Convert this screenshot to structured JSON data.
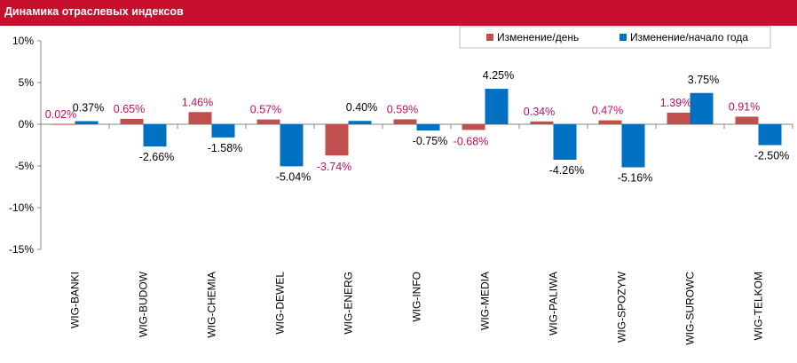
{
  "header": {
    "title": "Динамика отраслевых индексов"
  },
  "colors": {
    "header_bg": "#c8102e",
    "daily": "#c0504d",
    "ytd": "#0070c0",
    "daily_label": "#c0105f",
    "ytd_label": "#000000"
  },
  "chart_data": {
    "type": "bar",
    "title": "Динамика отраслевых индексов",
    "categories": [
      "WIG-BANKI",
      "WIG-BUDOW",
      "WIG-CHEMIA",
      "WIG-DEWEL",
      "WIG-ENERG",
      "WIG-INFO",
      "WIG-MEDIA",
      "WIG-PALIWA",
      "WIG-SPOZYW",
      "WIG-SUROWC",
      "WIG-TELKOM"
    ],
    "series": [
      {
        "name": "Изменение/день",
        "values": [
          0.02,
          0.65,
          1.46,
          0.57,
          -3.74,
          0.59,
          -0.68,
          0.34,
          0.47,
          1.39,
          0.91
        ],
        "labels": [
          "0.02%",
          "0.65%",
          "1.46%",
          "0.57%",
          "-3.74%",
          "0.59%",
          "-0.68%",
          "0.34%",
          "0.47%",
          "1.39%",
          "0.91%"
        ]
      },
      {
        "name": "Изменение/начало года",
        "values": [
          0.37,
          -2.66,
          -1.58,
          -5.04,
          0.4,
          -0.75,
          4.25,
          -4.26,
          -5.16,
          3.75,
          -2.5
        ],
        "labels": [
          "0.37%",
          "-2.66%",
          "-1.58%",
          "-5.04%",
          "0.40%",
          "-0.75%",
          "4.25%",
          "-4.26%",
          "-5.16%",
          "3.75%",
          "-2.50%"
        ]
      }
    ],
    "yticks": [
      10,
      5,
      0,
      -5,
      -10,
      -15
    ],
    "ytick_labels": [
      "10%",
      "5%",
      "0%",
      "-5%",
      "-10%",
      "-15%"
    ],
    "ylim": [
      -15,
      10
    ],
    "grid": false,
    "legend": "top-right"
  }
}
